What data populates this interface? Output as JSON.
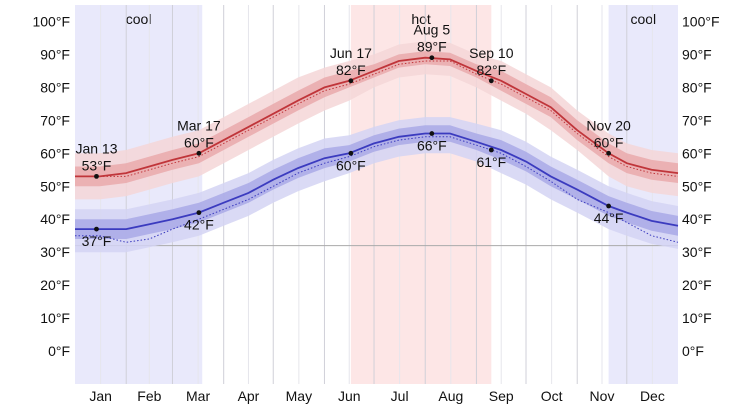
{
  "chart_data": {
    "type": "line",
    "yunit": "°F",
    "ylim": [
      -10,
      105
    ],
    "yticks": [
      0,
      10,
      20,
      30,
      40,
      50,
      60,
      70,
      80,
      90,
      100
    ],
    "ytick_labels": [
      "0°F",
      "10°F",
      "20°F",
      "30°F",
      "40°F",
      "50°F",
      "60°F",
      "70°F",
      "80°F",
      "90°F",
      "100°F"
    ],
    "xlim": [
      0,
      365
    ],
    "months": [
      {
        "label": "Jan",
        "start": 0,
        "mid": 15.5
      },
      {
        "label": "Feb",
        "start": 31,
        "mid": 45
      },
      {
        "label": "Mar",
        "start": 59,
        "mid": 74.5
      },
      {
        "label": "Apr",
        "start": 90,
        "mid": 105
      },
      {
        "label": "May",
        "start": 120,
        "mid": 135.5
      },
      {
        "label": "Jun",
        "start": 151,
        "mid": 166
      },
      {
        "label": "Jul",
        "start": 181,
        "mid": 196.5
      },
      {
        "label": "Aug",
        "start": 212,
        "mid": 227.5
      },
      {
        "label": "Sep",
        "start": 243,
        "mid": 258
      },
      {
        "label": "Oct",
        "start": 273,
        "mid": 288.5
      },
      {
        "label": "Nov",
        "start": 304,
        "mid": 319
      },
      {
        "label": "Dec",
        "start": 334,
        "mid": 349.5
      }
    ],
    "bands": [
      {
        "label": "cool",
        "from": 0,
        "to": 77,
        "color": "#e9e9fb"
      },
      {
        "label": "hot",
        "from": 167,
        "to": 252,
        "color": "#fde6e6"
      },
      {
        "label": "cool",
        "from": 323,
        "to": 365,
        "color": "#e9e9fb"
      }
    ],
    "reference_line": 32,
    "series": [
      {
        "key": "high",
        "color": "#c0353a",
        "inner_band_color": "#e9a9ab",
        "outer_band_color": "#f5d6d7",
        "x": [
          0,
          15,
          31,
          45,
          59,
          75,
          90,
          105,
          120,
          135,
          151,
          166,
          181,
          196,
          212,
          227,
          243,
          258,
          273,
          288,
          304,
          323,
          334,
          349,
          365
        ],
        "values": [
          53,
          53,
          54,
          56,
          58,
          60,
          64,
          68,
          72,
          76,
          80,
          82,
          85,
          88,
          89,
          88.5,
          85,
          82,
          78,
          74,
          67,
          60,
          57,
          55,
          54
        ],
        "p25": [
          50,
          50,
          51,
          53,
          55,
          57,
          61,
          65,
          69,
          73,
          77,
          80,
          83,
          86,
          87,
          86.5,
          83,
          79,
          75,
          71,
          64,
          57,
          54,
          52,
          51
        ],
        "p75": [
          56,
          56,
          57,
          59,
          61,
          63,
          67,
          71,
          75,
          79,
          83,
          85,
          87,
          90,
          91,
          90.5,
          87,
          85,
          81,
          77,
          70,
          63,
          60,
          58,
          57
        ],
        "p10": [
          46,
          46,
          47,
          49,
          51,
          53,
          57,
          61,
          65,
          69,
          73,
          76,
          80,
          83,
          84,
          83.5,
          80,
          76,
          72,
          67,
          61,
          53,
          50,
          48,
          47
        ],
        "p90": [
          60,
          60,
          61,
          63,
          65,
          67,
          71,
          75,
          79,
          83,
          86,
          88,
          90,
          93,
          94,
          93.5,
          90,
          88,
          84,
          80,
          73,
          66,
          63,
          61,
          60
        ],
        "dotted": [
          53,
          53,
          53,
          55,
          57,
          59,
          63,
          67,
          71,
          75,
          79,
          81,
          84,
          87,
          88,
          88,
          84,
          81,
          77,
          73,
          66,
          59,
          56,
          54,
          53
        ],
        "annotations": [
          {
            "day": 13,
            "date": "Jan 13",
            "value": 53,
            "temp": "53°F",
            "pos": "above"
          },
          {
            "day": 75,
            "date": "Mar 17",
            "value": 60,
            "temp": "60°F",
            "pos": "above"
          },
          {
            "day": 167,
            "date": "Jun 17",
            "value": 82,
            "temp": "82°F",
            "pos": "above"
          },
          {
            "day": 216,
            "date": "Aug 5",
            "value": 89,
            "temp": "89°F",
            "pos": "above"
          },
          {
            "day": 252,
            "date": "Sep 10",
            "value": 82,
            "temp": "82°F",
            "pos": "above"
          },
          {
            "day": 323,
            "date": "Nov 20",
            "value": 60,
            "temp": "60°F",
            "pos": "above"
          }
        ]
      },
      {
        "key": "low",
        "color": "#3b3bbf",
        "inner_band_color": "#a9a9e6",
        "outer_band_color": "#d3d3f3",
        "x": [
          0,
          15,
          31,
          45,
          59,
          75,
          90,
          105,
          120,
          135,
          151,
          166,
          181,
          196,
          212,
          227,
          243,
          258,
          273,
          288,
          304,
          323,
          334,
          349,
          365
        ],
        "values": [
          37,
          37,
          37,
          38.5,
          40,
          42,
          45,
          48,
          52,
          55.5,
          58.5,
          60,
          63,
          65,
          66,
          66,
          63.5,
          61,
          57.5,
          53,
          49,
          44,
          42,
          39.5,
          38
        ],
        "p25": [
          34,
          34,
          34,
          35.5,
          37,
          39,
          42,
          45,
          49,
          52.5,
          55.5,
          57.5,
          60.5,
          62.5,
          63.5,
          63.5,
          61,
          58,
          54.5,
          50,
          46,
          41,
          39,
          36.5,
          35
        ],
        "p75": [
          40,
          40,
          40,
          41.5,
          43,
          45,
          48,
          51,
          55,
          58.5,
          61.5,
          62.5,
          65.5,
          67.5,
          68.5,
          68.5,
          66,
          64,
          60.5,
          56,
          52,
          47,
          45,
          42.5,
          41
        ],
        "p10": [
          30,
          30,
          30,
          31.5,
          33,
          35,
          38,
          41,
          45,
          48.5,
          51.5,
          54,
          57,
          59,
          60,
          60,
          57.5,
          54,
          50.5,
          46,
          42,
          37,
          35,
          32.5,
          31
        ],
        "p90": [
          43,
          43,
          43,
          44.5,
          46,
          48,
          51,
          54,
          58,
          61.5,
          64.5,
          65.5,
          68,
          70,
          71,
          71,
          69,
          67,
          63.5,
          59,
          55,
          50,
          48,
          45.5,
          44
        ],
        "dotted": [
          35,
          35,
          33,
          34,
          37,
          40,
          43,
          46,
          50,
          54,
          57,
          59,
          62,
          64,
          65,
          65,
          62.5,
          60,
          56,
          51.5,
          46,
          42,
          39,
          35,
          33
        ],
        "annotations": [
          {
            "day": 13,
            "date": "",
            "value": 37,
            "temp": "37°F",
            "pos": "below"
          },
          {
            "day": 75,
            "date": "",
            "value": 42,
            "temp": "42°F",
            "pos": "below"
          },
          {
            "day": 167,
            "date": "",
            "value": 60,
            "temp": "60°F",
            "pos": "below"
          },
          {
            "day": 216,
            "date": "",
            "value": 66,
            "temp": "66°F",
            "pos": "below"
          },
          {
            "day": 252,
            "date": "",
            "value": 61,
            "temp": "61°F",
            "pos": "below"
          },
          {
            "day": 323,
            "date": "",
            "value": 44,
            "temp": "44°F",
            "pos": "below"
          }
        ]
      }
    ]
  }
}
